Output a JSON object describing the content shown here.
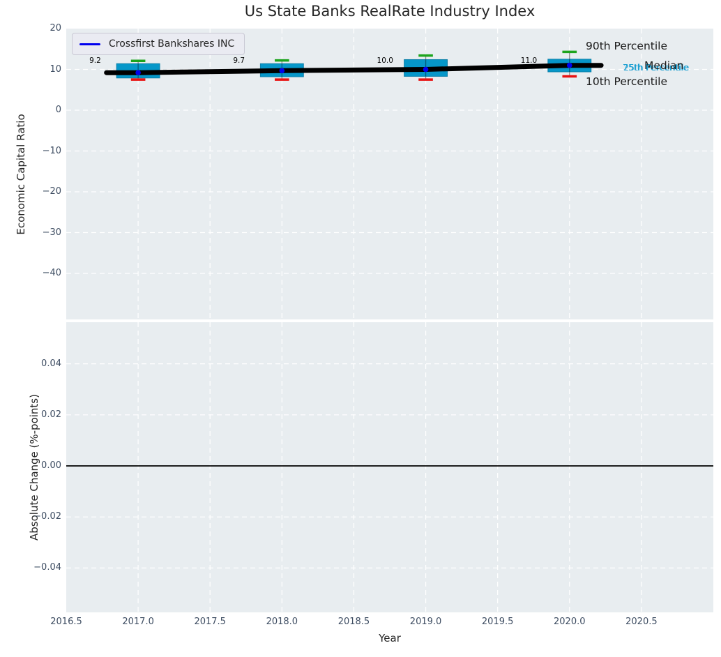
{
  "title": "Us State Banks RealRate Industry Index",
  "legend": {
    "label": "Crossfirst Bankshares INC"
  },
  "annotations": {
    "p90": "90th Percentile",
    "p75": "75th Percentile",
    "median": "Median",
    "p25": "25th Percentile",
    "p10": "10th Percentile"
  },
  "colors": {
    "box_fill": "#0697c9",
    "box_edge": "#0b7fa8",
    "cap_high": "#1da41d",
    "cap_low": "#e81212",
    "median_line": "#000000",
    "company_line": "#0000ee",
    "cyan_text": "#1ea0d2",
    "axes_bg": "#e8edf0",
    "grid": "#ffffff",
    "tick_text": "#3e4d62",
    "zero_line": "#000000"
  },
  "chart_data": [
    {
      "type": "boxplot",
      "title": "Us State Banks RealRate Industry Index",
      "xlabel": "Year",
      "ylabel": "Economic Capital Ratio",
      "xlim": [
        2016.5,
        2021.0
      ],
      "ylim": [
        -51,
        20
      ],
      "yticks": [
        20,
        10,
        0,
        -10,
        -20,
        -30,
        -40
      ],
      "ytick_labels": [
        "20",
        "10",
        "0",
        "−10",
        "−20",
        "−30",
        "−40"
      ],
      "xticks": [
        2016.5,
        2017.0,
        2017.5,
        2018.0,
        2018.5,
        2019.0,
        2019.5,
        2020.0,
        2020.5
      ],
      "xtick_labels": [
        "2016.5",
        "2017.0",
        "2017.5",
        "2018.0",
        "2018.5",
        "2019.0",
        "2019.5",
        "2020.0",
        "2020.5"
      ],
      "grid": "white dashed",
      "legend_position": "upper left",
      "box_width": 0.3,
      "boxes": [
        {
          "year": 2017,
          "p10": 7.5,
          "p25": 7.9,
          "median": 9.2,
          "p75": 11.4,
          "p90": 12.1,
          "label": "9.2"
        },
        {
          "year": 2018,
          "p10": 7.5,
          "p25": 8.2,
          "median": 9.7,
          "p75": 11.4,
          "p90": 12.2,
          "label": "9.7"
        },
        {
          "year": 2019,
          "p10": 7.5,
          "p25": 8.3,
          "median": 10.0,
          "p75": 12.4,
          "p90": 13.4,
          "label": "10.0"
        },
        {
          "year": 2020,
          "p10": 8.3,
          "p25": 9.4,
          "median": 11.0,
          "p75": 12.5,
          "p90": 14.3,
          "label": "11.0"
        }
      ],
      "series": [
        {
          "name": "Crossfirst Bankshares INC",
          "x": [
            2017,
            2018,
            2019,
            2020
          ],
          "values": [
            9.2,
            9.7,
            10.0,
            11.0
          ]
        },
        {
          "name": "Median",
          "x": [
            2017,
            2018,
            2019,
            2020
          ],
          "values": [
            9.2,
            9.7,
            10.0,
            11.0
          ]
        }
      ]
    },
    {
      "type": "line",
      "xlabel": "Year",
      "ylabel": "Absolute Change (%-points)",
      "xlim": [
        2016.5,
        2021.0
      ],
      "ylim": [
        -0.057,
        0.056
      ],
      "yticks": [
        0.04,
        0.02,
        0.0,
        -0.02,
        -0.04
      ],
      "ytick_labels": [
        "0.04",
        "0.02",
        "0.00",
        "−0.02",
        "−0.04"
      ],
      "xticks": [
        2016.5,
        2017.0,
        2017.5,
        2018.0,
        2018.5,
        2019.0,
        2019.5,
        2020.0,
        2020.5
      ],
      "grid": "white dashed",
      "zero_line_y": 0.0,
      "series": []
    }
  ]
}
